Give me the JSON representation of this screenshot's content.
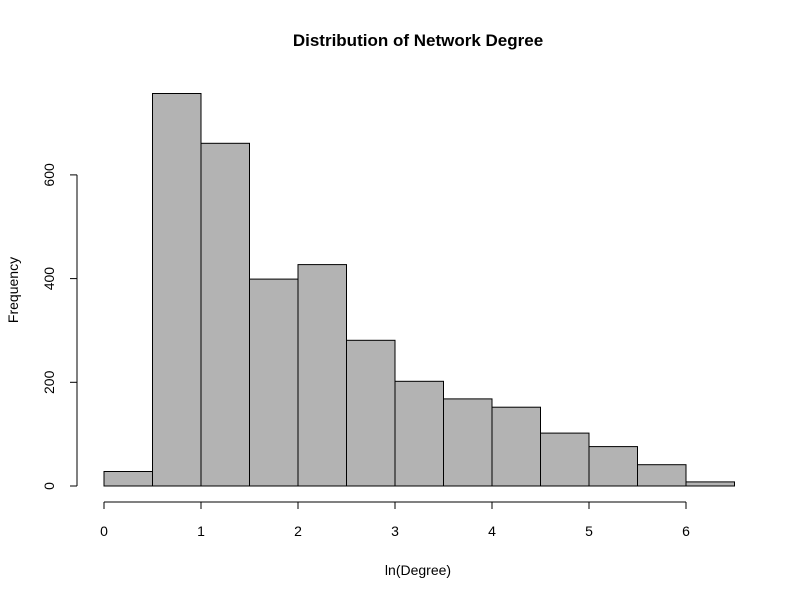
{
  "chart_data": {
    "type": "bar",
    "title": "Distribution of Network Degree",
    "xlabel": "ln(Degree)",
    "ylabel": "Frequency",
    "bin_edges": [
      0,
      0.5,
      1,
      1.5,
      2,
      2.5,
      3,
      3.5,
      4,
      4.5,
      5,
      5.5,
      6,
      6.5
    ],
    "values": [
      28,
      757,
      661,
      399,
      427,
      281,
      202,
      168,
      152,
      102,
      76,
      41,
      8
    ],
    "xlim": [
      0,
      6.5
    ],
    "ylim": [
      0,
      757
    ],
    "x_ticks": [
      0,
      1,
      2,
      3,
      4,
      5,
      6
    ],
    "x_tick_labels": [
      "0",
      "1",
      "2",
      "3",
      "4",
      "5",
      "6"
    ],
    "y_ticks": [
      0,
      200,
      400,
      600
    ],
    "y_tick_labels": [
      "0",
      "200",
      "400",
      "600"
    ],
    "bar_color": "#b3b3b3",
    "grid": false,
    "legend": "none"
  }
}
